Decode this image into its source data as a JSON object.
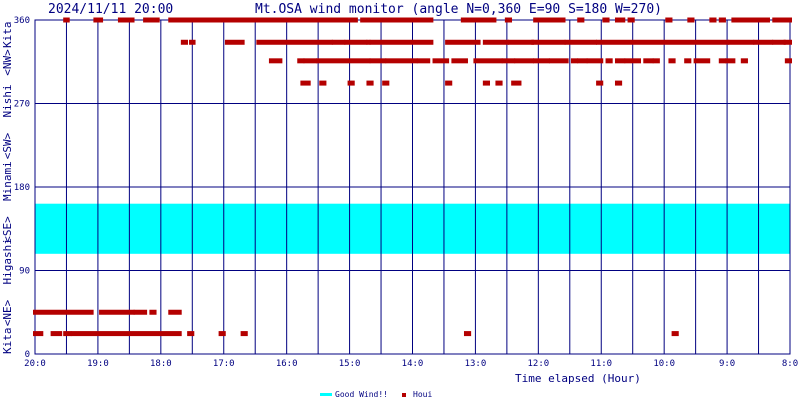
{
  "header": {
    "timestamp": "2024/11/11 20:00",
    "title": "Mt.OSA wind monitor (angle N=0,360 E=90 S=180 W=270)"
  },
  "chart_data": {
    "type": "scatter",
    "title": "Mt.OSA wind monitor (angle N=0,360 E=90 S=180 W=270)",
    "xlabel": "Time elapsed (Hour)",
    "ylabel": "Kita  <NE> Higashi  <SE>  Minami  <SW>  Nishi  <NW>  Kita",
    "x_domain_hours": [
      0,
      12
    ],
    "x_tick_labels": [
      "20:0",
      "19:0",
      "18:0",
      "17:0",
      "16:0",
      "15:0",
      "14:0",
      "13:0",
      "12:0",
      "11:0",
      "10:0",
      "9:0",
      "8:0"
    ],
    "y_tick_labels": [
      "0",
      "90",
      "180",
      "270",
      "360"
    ],
    "ylim": [
      0,
      360
    ],
    "ylabel_parts": [
      "Kita",
      "<NE>",
      "Higashi",
      "<SE>",
      "Minami",
      "<SW>",
      "Nishi",
      "<NW>",
      "Kita"
    ],
    "good_wind_band": {
      "from": 108,
      "to": 162,
      "color": "#00ffff"
    },
    "marker_color": "#b40000",
    "legend": {
      "placement": "bottom-center",
      "items": [
        "Good Wind!!",
        "Houi"
      ]
    },
    "series": [
      {
        "name": "Houi",
        "rows": [
          {
            "y": 360,
            "segments": [
              [
                0.48,
                0.52
              ],
              [
                0.96,
                1.05
              ],
              [
                1.35,
                1.55
              ],
              [
                1.75,
                1.95
              ],
              [
                2.15,
                2.78
              ],
              [
                2.82,
                3.3
              ],
              [
                3.35,
                3.45
              ],
              [
                3.5,
                4.0
              ],
              [
                4.05,
                4.15
              ],
              [
                4.2,
                4.6
              ],
              [
                4.65,
                5.0
              ],
              [
                5.05,
                5.1
              ],
              [
                5.2,
                5.55
              ],
              [
                5.6,
                5.75
              ],
              [
                5.8,
                6.0
              ],
              [
                5.93,
                5.97
              ],
              [
                6.0,
                6.05
              ],
              [
                6.05,
                6.1
              ],
              [
                6.1,
                6.15
              ],
              [
                6.15,
                6.2
              ],
              [
                6.25,
                6.3
              ],
              [
                7.0,
                7.1
              ],
              [
                6.8,
                7.15
              ],
              [
                7.1,
                7.3
              ],
              [
                7.25,
                7.3
              ],
              [
                7.5,
                7.55
              ],
              [
                7.95,
                8.1
              ],
              [
                8.15,
                8.3
              ],
              [
                8.35,
                8.4
              ],
              [
                8.65,
                8.7
              ],
              [
                9.05,
                9.1
              ],
              [
                9.25,
                9.35
              ],
              [
                9.45,
                9.5
              ],
              [
                10.05,
                10.1
              ],
              [
                10.4,
                10.45
              ],
              [
                10.75,
                10.8
              ],
              [
                10.9,
                10.95
              ],
              [
                11.1,
                11.4
              ],
              [
                11.45,
                11.5
              ],
              [
                11.55,
                11.65
              ],
              [
                11.75,
                12.0
              ]
            ]
          },
          {
            "y": 336,
            "segments": [
              [
                2.35,
                2.4
              ],
              [
                2.48,
                2.52
              ],
              [
                3.05,
                3.3
              ],
              [
                3.55,
                4.7
              ],
              [
                4.75,
                4.9
              ],
              [
                4.95,
                5.25
              ],
              [
                5.3,
                5.3
              ],
              [
                5.35,
                6.3
              ],
              [
                6.55,
                7.05
              ],
              [
                7.15,
                7.5
              ],
              [
                7.55,
                7.9
              ],
              [
                7.92,
                8.4
              ],
              [
                8.45,
                8.9
              ],
              [
                8.95,
                11.0
              ],
              [
                11.05,
                11.4
              ],
              [
                11.45,
                11.7
              ],
              [
                11.75,
                11.9
              ],
              [
                11.93,
                12.0
              ]
            ]
          },
          {
            "y": 316,
            "segments": [
              [
                3.75,
                3.9
              ],
              [
                4.2,
                4.25
              ],
              [
                4.3,
                4.45
              ],
              [
                4.5,
                5.3
              ],
              [
                5.35,
                5.55
              ],
              [
                5.6,
                6.05
              ],
              [
                6.1,
                6.25
              ],
              [
                6.35,
                6.55
              ],
              [
                6.65,
                6.85
              ],
              [
                7.0,
                7.4
              ],
              [
                7.45,
                7.6
              ],
              [
                7.65,
                7.9
              ],
              [
                7.95,
                8.15
              ],
              [
                8.2,
                8.45
              ],
              [
                8.55,
                8.6
              ],
              [
                8.65,
                8.75
              ],
              [
                8.8,
                9.0
              ],
              [
                9.1,
                9.15
              ],
              [
                9.25,
                9.35
              ],
              [
                9.4,
                9.6
              ],
              [
                9.7,
                9.8
              ],
              [
                9.85,
                9.9
              ],
              [
                10.1,
                10.15
              ],
              [
                10.35,
                10.4
              ],
              [
                10.5,
                10.7
              ],
              [
                10.9,
                10.95
              ],
              [
                11.0,
                11.1
              ],
              [
                11.25,
                11.3
              ],
              [
                11.95,
                12.0
              ]
            ]
          },
          {
            "y": 292,
            "segments": [
              [
                4.25,
                4.35
              ],
              [
                4.55,
                4.6
              ],
              [
                5.0,
                5.05
              ],
              [
                5.3,
                5.35
              ],
              [
                5.55,
                5.6
              ],
              [
                6.55,
                6.6
              ],
              [
                7.15,
                7.2
              ],
              [
                7.35,
                7.4
              ],
              [
                7.6,
                7.7
              ],
              [
                8.95,
                9.0
              ],
              [
                9.25,
                9.3
              ]
            ]
          },
          {
            "y": 45,
            "segments": [
              [
                0.0,
                0.9
              ],
              [
                1.05,
                1.55
              ],
              [
                1.6,
                1.75
              ],
              [
                1.85,
                1.9
              ],
              [
                2.15,
                2.3
              ]
            ]
          },
          {
            "y": 22,
            "segments": [
              [
                0.0,
                0.1
              ],
              [
                0.28,
                0.4
              ],
              [
                0.48,
                0.55
              ],
              [
                0.6,
                2.3
              ],
              [
                2.45,
                2.5
              ],
              [
                2.95,
                3.0
              ],
              [
                3.3,
                3.35
              ],
              [
                6.85,
                6.9
              ],
              [
                10.15,
                10.2
              ]
            ]
          }
        ]
      }
    ]
  }
}
